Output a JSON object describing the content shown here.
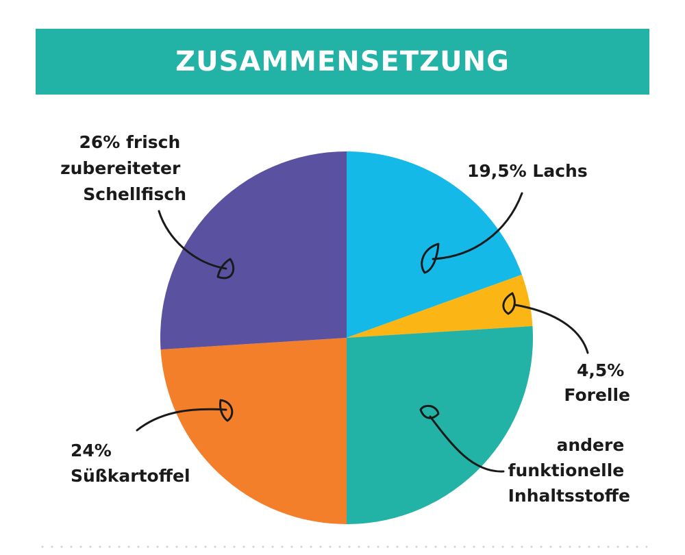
{
  "chart_data": {
    "type": "pie",
    "title": "ZUSAMMENSETZUNG",
    "slices": [
      {
        "label": "19,5% Lachs",
        "value": 19.5,
        "color": "#14b9e8"
      },
      {
        "label": "4,5% Forelle",
        "value": 4.5,
        "color": "#fbb616"
      },
      {
        "label": "andere funktionelle Inhaltsstoffe",
        "value": 26,
        "color": "#22b2a6"
      },
      {
        "label": "24% Süßkartoffel",
        "value": 24,
        "color": "#f47f2a"
      },
      {
        "label": "26% frisch zubereiteter Schellfisch",
        "value": 26,
        "color": "#5b51a1"
      }
    ],
    "labels": {
      "lachs": [
        "19,5% Lachs"
      ],
      "forelle": [
        "4,5%",
        "Forelle"
      ],
      "andere": [
        "andere",
        "funktionelle",
        "Inhaltsstoffe"
      ],
      "suesskartoffel": [
        "24%",
        "Süßkartoffel"
      ],
      "schellfisch": [
        "26% frisch",
        "zubereiteter",
        "Schellfisch"
      ]
    }
  }
}
